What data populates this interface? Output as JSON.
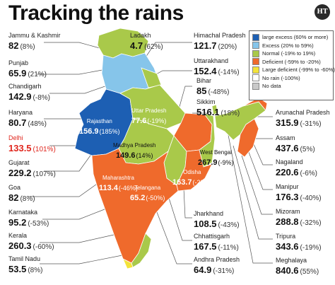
{
  "title": "Tracking the rains",
  "logo": "HT",
  "colors": {
    "large_excess": "#1d5fb3",
    "excess": "#86c5ea",
    "normal": "#a9c94a",
    "deficient": "#ef6a2c",
    "large_deficient": "#f3e33a",
    "no_rain": "#ffffff",
    "no_data": "#c9c9c9"
  },
  "legend": [
    {
      "label": "large excess (60% or more)",
      "color": "#1d5fb3"
    },
    {
      "label": "Excess (20% to 59%)",
      "color": "#86c5ea"
    },
    {
      "label": "Normal (-19% to 19%)",
      "color": "#a9c94a"
    },
    {
      "label": "Deficient (-59% to -20%)",
      "color": "#ef6a2c"
    },
    {
      "label": "Large deficient (-99% to -60%)",
      "color": "#f3e33a"
    },
    {
      "label": "No rain (-100%)",
      "color": "#ffffff"
    },
    {
      "label": "No data",
      "color": "#c9c9c9"
    }
  ],
  "states": {
    "jk": {
      "name": "Jammu & Kashmir",
      "value": "82",
      "pct": "(8%)"
    },
    "punjab": {
      "name": "Punjab",
      "value": "65.9",
      "pct": "(21%)"
    },
    "chandigarh": {
      "name": "Chandigarh",
      "value": "142.9",
      "pct": "(-8%)"
    },
    "haryana": {
      "name": "Haryana",
      "value": "80.7",
      "pct": "(48%)"
    },
    "delhi": {
      "name": "Delhi",
      "value": "133.5",
      "pct": "(101%)"
    },
    "gujarat": {
      "name": "Gujarat",
      "value": "229.2",
      "pct": "(107%)"
    },
    "goa": {
      "name": "Goa",
      "value": "82",
      "pct": "(8%)"
    },
    "karnataka": {
      "name": "Karnataka",
      "value": "95.2",
      "pct": "(-53%)"
    },
    "kerala": {
      "name": "Kerala",
      "value": "260.3",
      "pct": "(-60%)"
    },
    "tamilnadu": {
      "name": "Tamil Nadu",
      "value": "53.5",
      "pct": "(8%)"
    },
    "ladakh": {
      "name": "Ladakh",
      "value": "4.7",
      "pct": "(62%)"
    },
    "himachal": {
      "name": "Himachal Pradesh",
      "value": "121.7",
      "pct": "(20%)"
    },
    "uttarakhand": {
      "name": "Uttarakhand",
      "value": "152.4",
      "pct": "(-14%)"
    },
    "bihar": {
      "name": "Bihar",
      "value": "85",
      "pct": "(-48%)"
    },
    "sikkim": {
      "name": "Sikkim",
      "value": "516.1",
      "pct": "(18%)"
    },
    "arunachal": {
      "name": "Arunachal Pradesh",
      "value": "315.9",
      "pct": "(-31%)"
    },
    "assam": {
      "name": "Assam",
      "value": "437.6",
      "pct": "(5%)"
    },
    "nagaland": {
      "name": "Nagaland",
      "value": "220.6",
      "pct": "(-6%)"
    },
    "manipur": {
      "name": "Manipur",
      "value": "176.3",
      "pct": "(-40%)"
    },
    "mizoram": {
      "name": "Mizoram",
      "value": "288.8",
      "pct": "(-32%)"
    },
    "tripura": {
      "name": "Tripura",
      "value": "343.6",
      "pct": "(-19%)"
    },
    "meghalaya": {
      "name": "Meghalaya",
      "value": "840.6",
      "pct": "(55%)"
    },
    "jharkhand": {
      "name": "Jharkhand",
      "value": "108.5",
      "pct": "(-43%)"
    },
    "chhattisgarh": {
      "name": "Chhattisgarh",
      "value": "167.5",
      "pct": "(-11%)"
    },
    "andhra": {
      "name": "Andhra Pradesh",
      "value": "64.9",
      "pct": "(-31%)"
    },
    "rajasthan": {
      "name": "Rajasthan",
      "value": "156.9",
      "pct": "(185%)"
    },
    "up": {
      "name": "Uttar Pradesh",
      "value": "77.6",
      "pct": "(-19%)"
    },
    "mp": {
      "name": "Madhya Pradesh",
      "value": "149.6",
      "pct": "(14%)"
    },
    "maharashtra": {
      "name": "Maharashtra",
      "value": "113.4",
      "pct": "(-46%)"
    },
    "telangana": {
      "name": "Telangana",
      "value": "65.2",
      "pct": "(-50%)"
    },
    "odisha": {
      "name": "Odisha",
      "value": "163.7",
      "pct": "(-22%)"
    },
    "westbengal": {
      "name": "West Bengal",
      "value": "267.9",
      "pct": "(-9%)"
    }
  }
}
